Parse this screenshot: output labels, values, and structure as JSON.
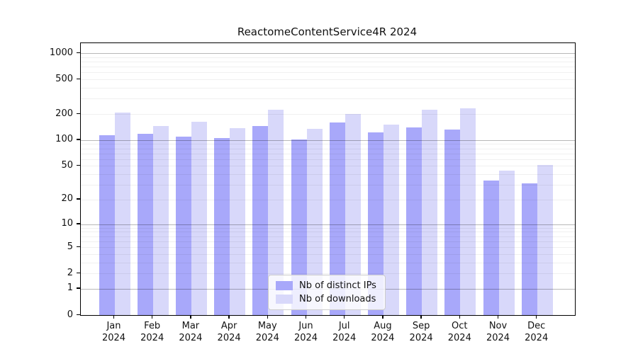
{
  "title": "ReactomeContentService4R 2024",
  "legend": {
    "items": [
      {
        "label": "Nb of distinct IPs",
        "color": "#a8a8fa"
      },
      {
        "label": "Nb of downloads",
        "color": "#d8d8fa"
      }
    ]
  },
  "chart_data": {
    "type": "bar",
    "title": "ReactomeContentService4R 2024",
    "categories": [
      "Jan 2024",
      "Feb 2024",
      "Mar 2024",
      "Apr 2024",
      "May 2024",
      "Jun 2024",
      "Jul 2024",
      "Aug 2024",
      "Sep 2024",
      "Oct 2024",
      "Nov 2024",
      "Dec 2024"
    ],
    "month_labels": [
      "Jan",
      "Feb",
      "Mar",
      "Apr",
      "May",
      "Jun",
      "Jul",
      "Aug",
      "Sep",
      "Oct",
      "Nov",
      "Dec"
    ],
    "year_label": "2024",
    "series": [
      {
        "name": "Nb of distinct IPs",
        "color": "#a8a8fa",
        "values": [
          113,
          118,
          110,
          105,
          146,
          101,
          160,
          122,
          140,
          133,
          34,
          31
        ]
      },
      {
        "name": "Nb of downloads",
        "color": "#d8d8fa",
        "values": [
          207,
          145,
          163,
          138,
          226,
          135,
          200,
          152,
          224,
          231,
          44,
          51
        ]
      }
    ],
    "xlabel": "",
    "ylabel": "",
    "yscale": "log1p",
    "ylim": [
      0,
      1300
    ],
    "yticks": [
      0,
      1,
      2,
      5,
      10,
      20,
      50,
      100,
      200,
      500,
      1000
    ],
    "grid": "on",
    "grid_major_at": [
      1,
      10,
      100,
      1000
    ],
    "legend_position": "lower center",
    "colors": {
      "bar_distinct_ips": "#a8a8fa",
      "bar_downloads": "#d8d8fa",
      "grid_major": "rgba(0,0,0,0.28)",
      "grid_minor": "rgba(0,0,0,0.06)",
      "axis": "#000000"
    }
  }
}
